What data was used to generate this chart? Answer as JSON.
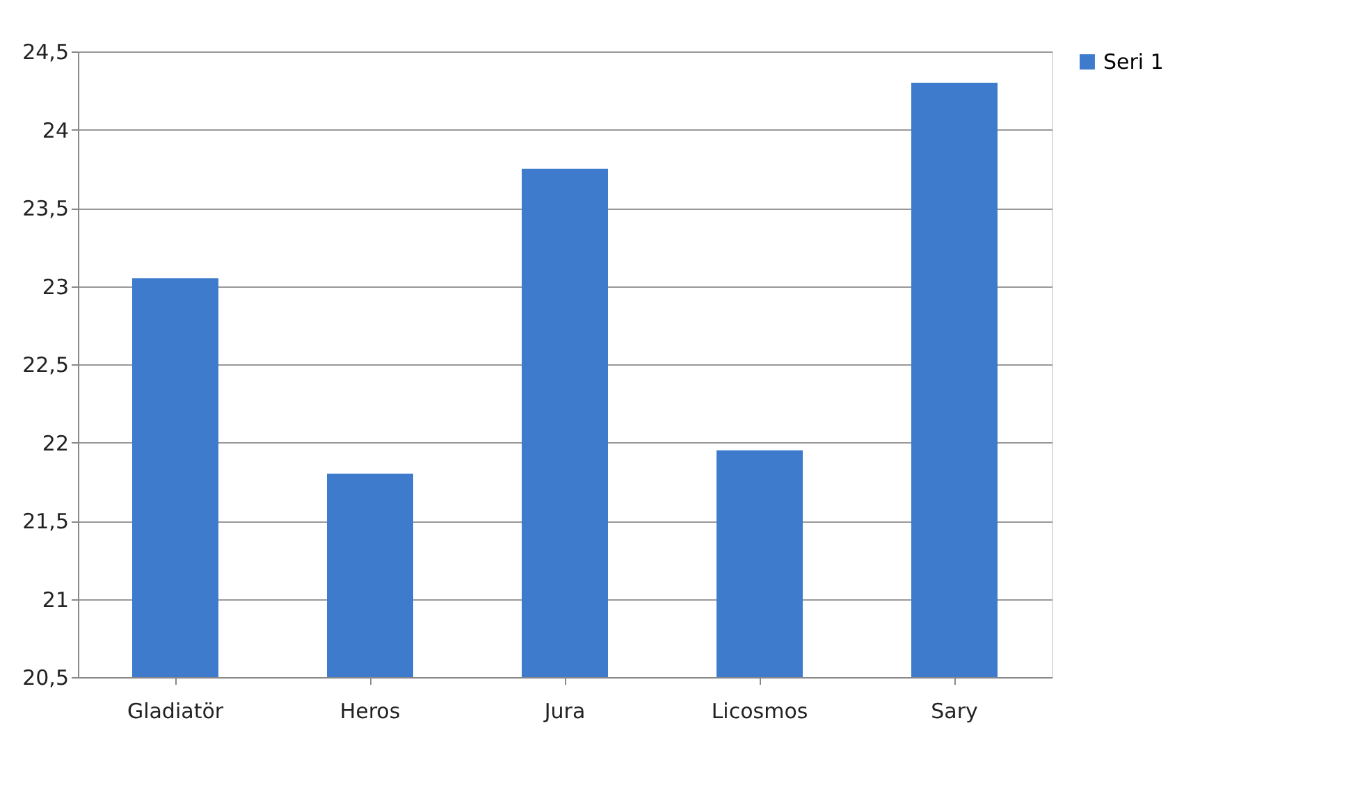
{
  "chart_data": {
    "type": "bar",
    "categories": [
      "Gladiatör",
      "Heros",
      "Jura",
      "Licosmos",
      "Sary"
    ],
    "series": [
      {
        "name": "Seri 1",
        "color": "#3f7bcc",
        "values": [
          23.05,
          21.8,
          23.75,
          21.95,
          24.3
        ]
      }
    ],
    "ylim": [
      20.5,
      24.5
    ],
    "yticks": [
      {
        "value": 20.5,
        "label": "20,5"
      },
      {
        "value": 21,
        "label": "21"
      },
      {
        "value": 21.5,
        "label": "21,5"
      },
      {
        "value": 22,
        "label": "22"
      },
      {
        "value": 22.5,
        "label": "22,5"
      },
      {
        "value": 23,
        "label": "23"
      },
      {
        "value": 23.5,
        "label": "23,5"
      },
      {
        "value": 24,
        "label": "24"
      },
      {
        "value": 24.5,
        "label": "24,5"
      }
    ],
    "grid": "y",
    "legend": "right"
  }
}
